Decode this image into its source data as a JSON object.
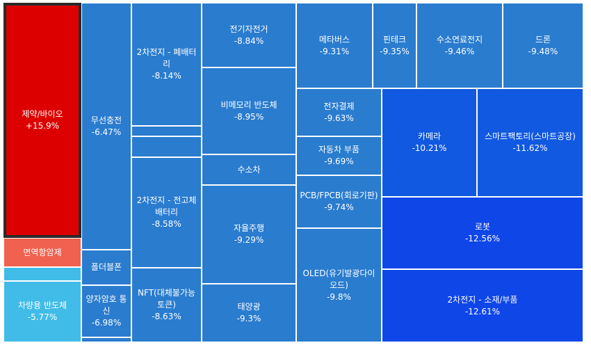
{
  "chart_data": {
    "type": "treemap",
    "colors": {
      "up": "#dd0000",
      "light_red": "#f0614f",
      "sky": "#41bce8",
      "mid_blue": "#2a7ccf",
      "strong_blue": "#1159e0",
      "deep_blue": "#0e46e8"
    },
    "tiles": [
      {
        "name": "제약/바이오",
        "change": "+15.9%",
        "value": 15.9,
        "color": "up",
        "selected": true
      },
      {
        "name": "면역항암제",
        "change": "",
        "color": "light_red"
      },
      {
        "name": "",
        "change": "",
        "color": "sky"
      },
      {
        "name": "차량용 반도체",
        "change": "-5.77%",
        "value": -5.77,
        "color": "sky"
      },
      {
        "name": "무선충전",
        "change": "-6.47%",
        "value": -6.47,
        "color": "mid_blue"
      },
      {
        "name": "폴더블폰",
        "change": "",
        "color": "mid_blue"
      },
      {
        "name": "양자암호 통신",
        "change": "-6.98%",
        "value": -6.98,
        "color": "mid_blue"
      },
      {
        "name": "",
        "change": "",
        "color": "mid_blue"
      },
      {
        "name": "2차전지 - 폐배터리",
        "change": "-8.14%",
        "value": -8.14,
        "color": "mid_blue"
      },
      {
        "name": "",
        "change": "",
        "color": "mid_blue"
      },
      {
        "name": "",
        "change": "",
        "color": "mid_blue"
      },
      {
        "name": "2차전지 - 전고체배터리",
        "change": "-8.58%",
        "value": -8.58,
        "color": "mid_blue"
      },
      {
        "name": "NFT(대체불가능토큰)",
        "change": "-8.63%",
        "value": -8.63,
        "color": "mid_blue"
      },
      {
        "name": "전기자전거",
        "change": "-8.84%",
        "value": -8.84,
        "color": "mid_blue"
      },
      {
        "name": "비메모리 반도체",
        "change": "-8.95%",
        "value": -8.95,
        "color": "mid_blue"
      },
      {
        "name": "수소차",
        "change": "",
        "color": "mid_blue"
      },
      {
        "name": "자율주행",
        "change": "-9.29%",
        "value": -9.29,
        "color": "mid_blue"
      },
      {
        "name": "태양광",
        "change": "-9.3%",
        "value": -9.3,
        "color": "mid_blue"
      },
      {
        "name": "메타버스",
        "change": "-9.31%",
        "value": -9.31,
        "color": "mid_blue"
      },
      {
        "name": "핀테크",
        "change": "-9.35%",
        "value": -9.35,
        "color": "mid_blue"
      },
      {
        "name": "수소연료전지",
        "change": "-9.46%",
        "value": -9.46,
        "color": "mid_blue"
      },
      {
        "name": "드론",
        "change": "-9.48%",
        "value": -9.48,
        "color": "mid_blue"
      },
      {
        "name": "전자결제",
        "change": "-9.63%",
        "value": -9.63,
        "color": "mid_blue"
      },
      {
        "name": "자동차 부품",
        "change": "-9.69%",
        "value": -9.69,
        "color": "mid_blue"
      },
      {
        "name": "PCB/FPCB(회로기판)",
        "change": "-9.74%",
        "value": -9.74,
        "color": "mid_blue"
      },
      {
        "name": "OLED(유기발광다이오드)",
        "change": "-9.8%",
        "value": -9.8,
        "color": "mid_blue"
      },
      {
        "name": "카메라",
        "change": "-10.21%",
        "value": -10.21,
        "color": "strong_blue"
      },
      {
        "name": "스마트팩토리(스마트공장)",
        "change": "-11.62%",
        "value": -11.62,
        "color": "strong_blue"
      },
      {
        "name": "로봇",
        "change": "-12.56%",
        "value": -12.56,
        "color": "deep_blue"
      },
      {
        "name": "2차전지 - 소재/부품",
        "change": "-12.61%",
        "value": -12.61,
        "color": "deep_blue"
      }
    ]
  }
}
